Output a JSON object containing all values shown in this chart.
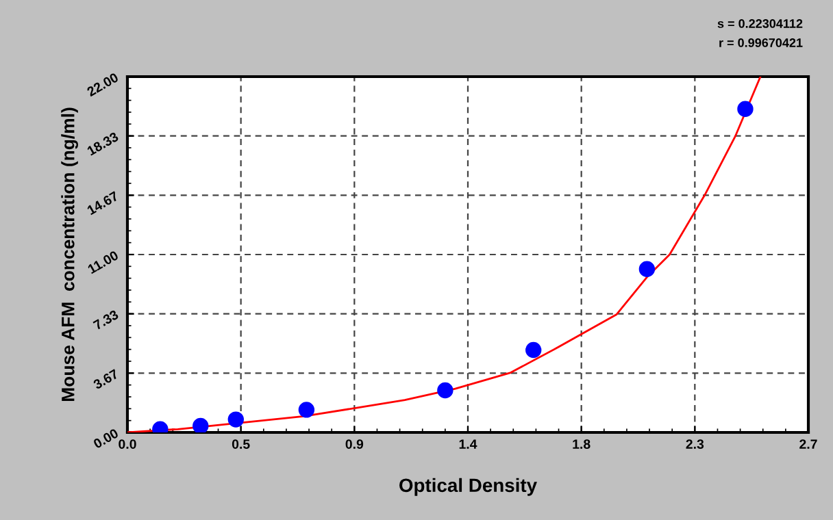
{
  "chart_data": {
    "type": "scatter",
    "xlabel": "Optical Density",
    "ylabel": "Mouse AFM  concentration (ng/ml)",
    "annotations": [
      "s = 0.22304112",
      "r = 0.99670421"
    ],
    "xlim": [
      0,
      2.7
    ],
    "ylim": [
      0,
      22
    ],
    "xticks": [
      {
        "value": 0,
        "label": "0.0"
      },
      {
        "value": 0.45,
        "label": "0.5"
      },
      {
        "value": 0.9,
        "label": "0.9"
      },
      {
        "value": 1.35,
        "label": "1.4"
      },
      {
        "value": 1.8,
        "label": "1.8"
      },
      {
        "value": 2.25,
        "label": "2.3"
      },
      {
        "value": 2.7,
        "label": "2.7"
      }
    ],
    "yticks": [
      {
        "value": 0,
        "label": "0.00"
      },
      {
        "value": 3.667,
        "label": "3.67"
      },
      {
        "value": 7.333,
        "label": "7.33"
      },
      {
        "value": 11,
        "label": "11.00"
      },
      {
        "value": 14.667,
        "label": "14.67"
      },
      {
        "value": 18.333,
        "label": "18.33"
      },
      {
        "value": 22,
        "label": "22.00"
      }
    ],
    "grid": true,
    "series": [
      {
        "color": "#0000ff",
        "marker": "circle",
        "x": [
          0.13,
          0.29,
          0.43,
          0.71,
          1.26,
          1.61,
          2.06,
          2.45
        ],
        "values": [
          0.2,
          0.4,
          0.8,
          1.4,
          2.6,
          5.1,
          10.1,
          20.0
        ]
      },
      {
        "type": "line",
        "color": "#ff0000",
        "x": [
          0,
          0.2,
          0.45,
          0.7,
          0.9,
          1.1,
          1.3,
          1.52,
          1.7,
          1.94,
          2.06,
          2.15,
          2.29,
          2.41,
          2.51
        ],
        "values": [
          0,
          0.2,
          0.6,
          1.0,
          1.5,
          2.0,
          2.7,
          3.7,
          5.2,
          7.3,
          9.6,
          11.0,
          14.7,
          18.3,
          22
        ]
      }
    ]
  }
}
